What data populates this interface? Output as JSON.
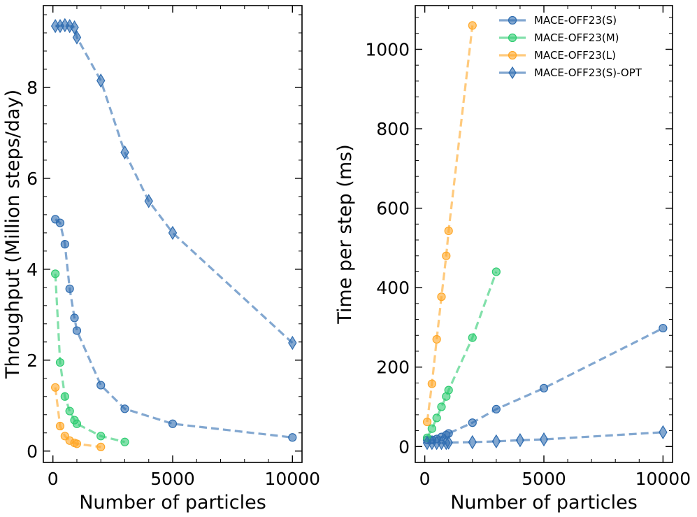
{
  "colors": {
    "small": "#2E6CB0",
    "medium": "#2ECC71",
    "large": "#FFA726",
    "opt": "#2E6CB0"
  },
  "chart_data": [
    {
      "type": "line",
      "panel": "left",
      "title": "",
      "xlabel": "Number of particles",
      "ylabel": "Throughput (Million steps/day)",
      "xlim": [
        -400,
        10400
      ],
      "ylim": [
        -0.25,
        9.8
      ],
      "xticks": [
        0,
        5000,
        10000
      ],
      "yticks": [
        0,
        2,
        4,
        6,
        8
      ],
      "grid": false,
      "series": [
        {
          "key": "small",
          "name": "MACE-OFF23(S)",
          "marker": "circle",
          "x": [
            100,
            300,
            500,
            700,
            900,
            1000,
            2000,
            3000,
            5000,
            10000
          ],
          "y": [
            5.1,
            5.02,
            4.55,
            3.57,
            2.93,
            2.65,
            1.45,
            0.93,
            0.6,
            0.3
          ]
        },
        {
          "key": "medium",
          "name": "MACE-OFF23(M)",
          "marker": "circle",
          "x": [
            100,
            300,
            500,
            700,
            900,
            1000,
            2000,
            3000
          ],
          "y": [
            3.9,
            1.95,
            1.2,
            0.88,
            0.68,
            0.6,
            0.33,
            0.2
          ]
        },
        {
          "key": "large",
          "name": "MACE-OFF23(L)",
          "marker": "circle",
          "x": [
            100,
            300,
            500,
            700,
            900,
            1000,
            2000
          ],
          "y": [
            1.4,
            0.55,
            0.33,
            0.23,
            0.18,
            0.16,
            0.09
          ]
        },
        {
          "key": "opt",
          "name": "MACE-OFF23(S)-OPT",
          "marker": "diamond",
          "x": [
            100,
            300,
            500,
            700,
            900,
            1000,
            2000,
            3000,
            4000,
            5000,
            10000
          ],
          "y": [
            9.35,
            9.35,
            9.37,
            9.35,
            9.32,
            9.1,
            8.15,
            6.57,
            5.5,
            4.8,
            2.38
          ]
        }
      ]
    },
    {
      "type": "line",
      "panel": "right",
      "title": "",
      "xlabel": "Number of particles",
      "ylabel": "Time per step (ms)",
      "xlim": [
        -400,
        10400
      ],
      "ylim": [
        -40,
        1110
      ],
      "xticks": [
        0,
        5000,
        10000
      ],
      "yticks": [
        0,
        200,
        400,
        600,
        800,
        1000
      ],
      "grid": false,
      "legend": "top-right",
      "series": [
        {
          "key": "small",
          "name": "MACE-OFF23(S)",
          "marker": "circle",
          "x": [
            100,
            300,
            500,
            700,
            900,
            1000,
            2000,
            3000,
            5000,
            10000
          ],
          "y": [
            17,
            17,
            19,
            24,
            29,
            33,
            60,
            94,
            147,
            298
          ]
        },
        {
          "key": "medium",
          "name": "MACE-OFF23(M)",
          "marker": "circle",
          "x": [
            100,
            300,
            500,
            700,
            900,
            1000,
            2000,
            3000
          ],
          "y": [
            22,
            45,
            72,
            100,
            126,
            142,
            274,
            440
          ]
        },
        {
          "key": "large",
          "name": "MACE-OFF23(L)",
          "marker": "circle",
          "x": [
            100,
            300,
            500,
            700,
            900,
            1000,
            2000
          ],
          "y": [
            62,
            158,
            270,
            377,
            480,
            543,
            1060
          ]
        },
        {
          "key": "opt",
          "name": "MACE-OFF23(S)-OPT",
          "marker": "diamond",
          "x": [
            100,
            300,
            500,
            700,
            900,
            1000,
            2000,
            3000,
            4000,
            5000,
            10000
          ],
          "y": [
            9,
            9,
            9,
            9,
            9,
            10,
            11,
            13,
            16,
            18,
            36
          ]
        }
      ]
    }
  ]
}
